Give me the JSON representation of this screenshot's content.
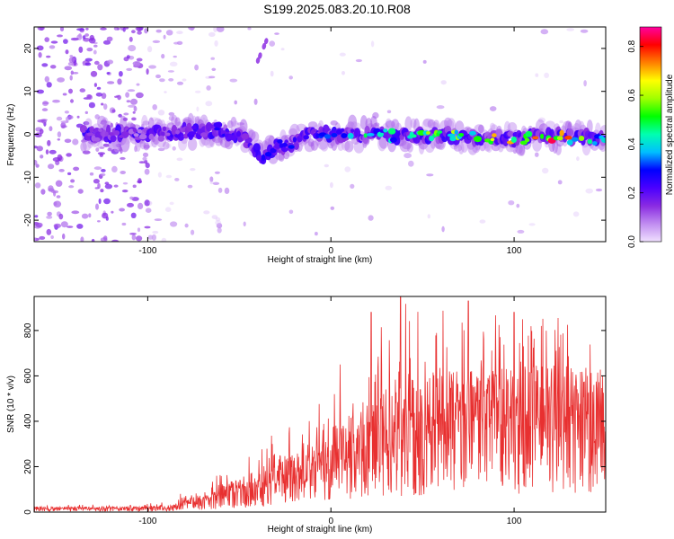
{
  "figure": {
    "title": "S199.2025.083.20.10.R08"
  },
  "chart_data": [
    {
      "type": "heatmap",
      "xlabel": "Height of straight line (km)",
      "ylabel": "Frequency (Hz)",
      "xlim": [
        -162,
        150
      ],
      "ylim": [
        -25,
        25
      ],
      "x_ticks": [
        -100,
        0,
        100
      ],
      "y_ticks": [
        -20,
        -10,
        0,
        10,
        20
      ],
      "x_tick_labels": [
        "-100",
        "0",
        "100"
      ],
      "y_tick_labels": [
        "-20",
        "-10",
        "0",
        "10",
        "20"
      ],
      "colorbar": {
        "label": "Normalized spectral amplitude",
        "range": [
          0,
          0.88
        ],
        "ticks": [
          0.0,
          0.2,
          0.4,
          0.6,
          0.8
        ],
        "tick_labels": [
          "0.0",
          "0.2",
          "0.4",
          "0.6",
          "0.8"
        ],
        "colormap": [
          "#f0e0ff",
          "#c08cf0",
          "#8a2be2",
          "#4b00ff",
          "#0000ff",
          "#00bfff",
          "#00ffb0",
          "#00ff00",
          "#a0ff00",
          "#ffff00",
          "#ff8000",
          "#ff0000",
          "#ff00a0"
        ]
      },
      "ridge": {
        "description_points_x": [
          -130,
          -100,
          -80,
          -60,
          -50,
          -42,
          -38,
          -30,
          -20,
          -10,
          0,
          20,
          40,
          60,
          80,
          100,
          120,
          150
        ],
        "center_frequency": [
          0,
          0,
          0.5,
          1,
          0,
          -3,
          -6,
          -3,
          -2,
          0,
          0,
          0,
          -0.5,
          0,
          -1,
          -1,
          -0.5,
          -1
        ],
        "peak_amplitude": [
          0.15,
          0.15,
          0.2,
          0.25,
          0.2,
          0.2,
          0.3,
          0.3,
          0.3,
          0.3,
          0.35,
          0.45,
          0.5,
          0.6,
          0.7,
          0.75,
          0.8,
          0.5
        ]
      },
      "spur": {
        "x": [
          -40,
          -35
        ],
        "frequency": [
          17,
          22
        ]
      }
    },
    {
      "type": "line",
      "xlabel": "Height of straight line (km)",
      "ylabel": "SNR (10 * v/v)",
      "xlim": [
        -162,
        150
      ],
      "ylim": [
        0,
        950
      ],
      "x_ticks": [
        -100,
        0,
        100
      ],
      "y_ticks": [
        0,
        200,
        400,
        600,
        800
      ],
      "x_tick_labels": [
        "-100",
        "0",
        "100"
      ],
      "y_tick_labels": [
        "0",
        "200",
        "400",
        "600",
        "800"
      ],
      "line_color": "#e83030",
      "envelope": {
        "x": [
          -162,
          -120,
          -100,
          -85,
          -80,
          -70,
          -60,
          -50,
          -40,
          -30,
          -20,
          -10,
          0,
          10,
          20,
          30,
          40,
          60,
          80,
          100,
          120,
          140,
          150
        ],
        "mean": [
          15,
          15,
          15,
          20,
          35,
          50,
          70,
          90,
          110,
          130,
          160,
          190,
          220,
          260,
          300,
          330,
          360,
          380,
          400,
          400,
          410,
          400,
          380
        ],
        "peak": [
          30,
          35,
          40,
          50,
          110,
          130,
          170,
          200,
          300,
          380,
          390,
          450,
          530,
          650,
          750,
          850,
          950,
          900,
          900,
          880,
          870,
          850,
          820
        ]
      },
      "notable_peaks": [
        {
          "x": 38,
          "y": 950
        },
        {
          "x": 75,
          "y": 930
        },
        {
          "x": 22,
          "y": 880
        },
        {
          "x": 100,
          "y": 880
        },
        {
          "x": 5,
          "y": 650
        }
      ]
    }
  ]
}
